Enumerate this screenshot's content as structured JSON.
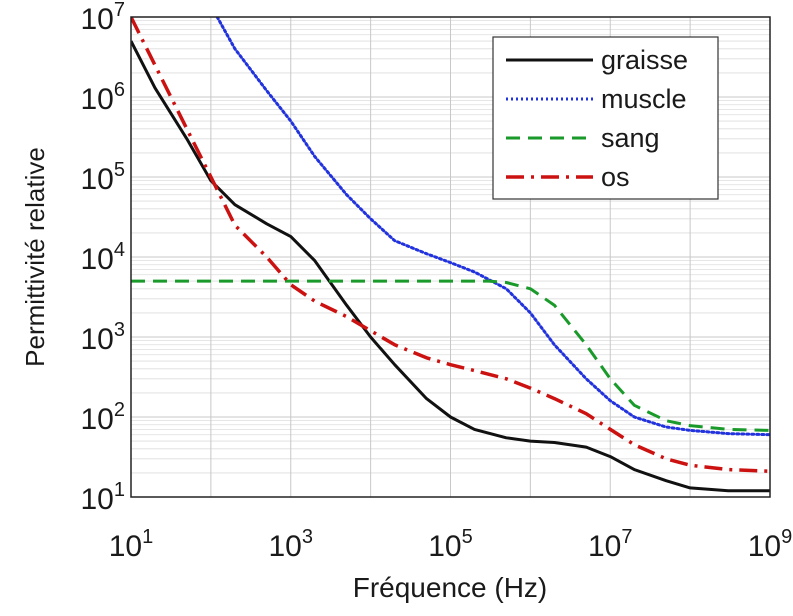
{
  "chart_data": {
    "type": "line",
    "title": "",
    "xlabel": "Fréquence (Hz)",
    "ylabel": "Permittivité relative",
    "x_scale": "log",
    "y_scale": "log",
    "xlim": [
      10,
      1000000000
    ],
    "ylim": [
      10,
      10000000
    ],
    "grid": true,
    "legend_position": "top-right",
    "x_ticks": [
      {
        "value": 10,
        "base": "10",
        "exp": "1"
      },
      {
        "value": 1000,
        "base": "10",
        "exp": "3"
      },
      {
        "value": 100000,
        "base": "10",
        "exp": "5"
      },
      {
        "value": 10000000,
        "base": "10",
        "exp": "7"
      },
      {
        "value": 1000000000,
        "base": "10",
        "exp": "9"
      }
    ],
    "y_ticks": [
      {
        "value": 10,
        "base": "10",
        "exp": "1"
      },
      {
        "value": 100,
        "base": "10",
        "exp": "2"
      },
      {
        "value": 1000,
        "base": "10",
        "exp": "3"
      },
      {
        "value": 10000,
        "base": "10",
        "exp": "4"
      },
      {
        "value": 100000,
        "base": "10",
        "exp": "5"
      },
      {
        "value": 1000000,
        "base": "10",
        "exp": "6"
      },
      {
        "value": 10000000,
        "base": "10",
        "exp": "7"
      }
    ],
    "series": [
      {
        "name": "graisse",
        "color": "#111111",
        "dash": "solid",
        "points": [
          [
            10,
            5000000
          ],
          [
            20,
            1300000
          ],
          [
            50,
            300000
          ],
          [
            100,
            90000
          ],
          [
            200,
            45000
          ],
          [
            500,
            26000
          ],
          [
            1000,
            18000
          ],
          [
            2000,
            9000
          ],
          [
            5000,
            2500
          ],
          [
            10000,
            1000
          ],
          [
            20000,
            450
          ],
          [
            50000,
            170
          ],
          [
            100000,
            100
          ],
          [
            200000,
            70
          ],
          [
            500000,
            55
          ],
          [
            1000000,
            50
          ],
          [
            2000000,
            48
          ],
          [
            5000000,
            42
          ],
          [
            10000000,
            32
          ],
          [
            20000000,
            22
          ],
          [
            50000000,
            16
          ],
          [
            100000000,
            13
          ],
          [
            300000000,
            12
          ],
          [
            1000000000,
            12
          ]
        ]
      },
      {
        "name": "muscle",
        "color": "#2233dd",
        "dash": "dotted",
        "points": [
          [
            120,
            10000000
          ],
          [
            200,
            4000000
          ],
          [
            500,
            1200000
          ],
          [
            1000,
            500000
          ],
          [
            2000,
            180000
          ],
          [
            5000,
            60000
          ],
          [
            10000,
            30000
          ],
          [
            20000,
            16000
          ],
          [
            50000,
            11000
          ],
          [
            100000,
            8500
          ],
          [
            200000,
            6500
          ],
          [
            500000,
            4000
          ],
          [
            1000000,
            2000
          ],
          [
            2000000,
            800
          ],
          [
            5000000,
            300
          ],
          [
            10000000,
            160
          ],
          [
            20000000,
            100
          ],
          [
            50000000,
            75
          ],
          [
            100000000,
            68
          ],
          [
            300000000,
            62
          ],
          [
            1000000000,
            60
          ]
        ]
      },
      {
        "name": "sang",
        "color": "#1a9a2a",
        "dash": "dashed",
        "points": [
          [
            10,
            5000
          ],
          [
            10000,
            5000
          ],
          [
            100000,
            5000
          ],
          [
            300000,
            5000
          ],
          [
            500000,
            4800
          ],
          [
            1000000,
            4000
          ],
          [
            2000000,
            2500
          ],
          [
            5000000,
            800
          ],
          [
            10000000,
            300
          ],
          [
            20000000,
            140
          ],
          [
            50000000,
            90
          ],
          [
            100000000,
            78
          ],
          [
            300000000,
            70
          ],
          [
            1000000000,
            68
          ]
        ]
      },
      {
        "name": "os",
        "color": "#cc1111",
        "dash": "dashdot",
        "points": [
          [
            10,
            10000000
          ],
          [
            20,
            2500000
          ],
          [
            50,
            400000
          ],
          [
            100,
            100000
          ],
          [
            200,
            25000
          ],
          [
            500,
            10000
          ],
          [
            1000,
            4500
          ],
          [
            2000,
            2800
          ],
          [
            5000,
            1800
          ],
          [
            10000,
            1200
          ],
          [
            20000,
            800
          ],
          [
            50000,
            550
          ],
          [
            100000,
            450
          ],
          [
            200000,
            380
          ],
          [
            500000,
            300
          ],
          [
            1000000,
            230
          ],
          [
            2000000,
            170
          ],
          [
            5000000,
            110
          ],
          [
            10000000,
            70
          ],
          [
            20000000,
            45
          ],
          [
            50000000,
            30
          ],
          [
            100000000,
            25
          ],
          [
            300000000,
            22
          ],
          [
            1000000000,
            21
          ]
        ]
      }
    ]
  }
}
